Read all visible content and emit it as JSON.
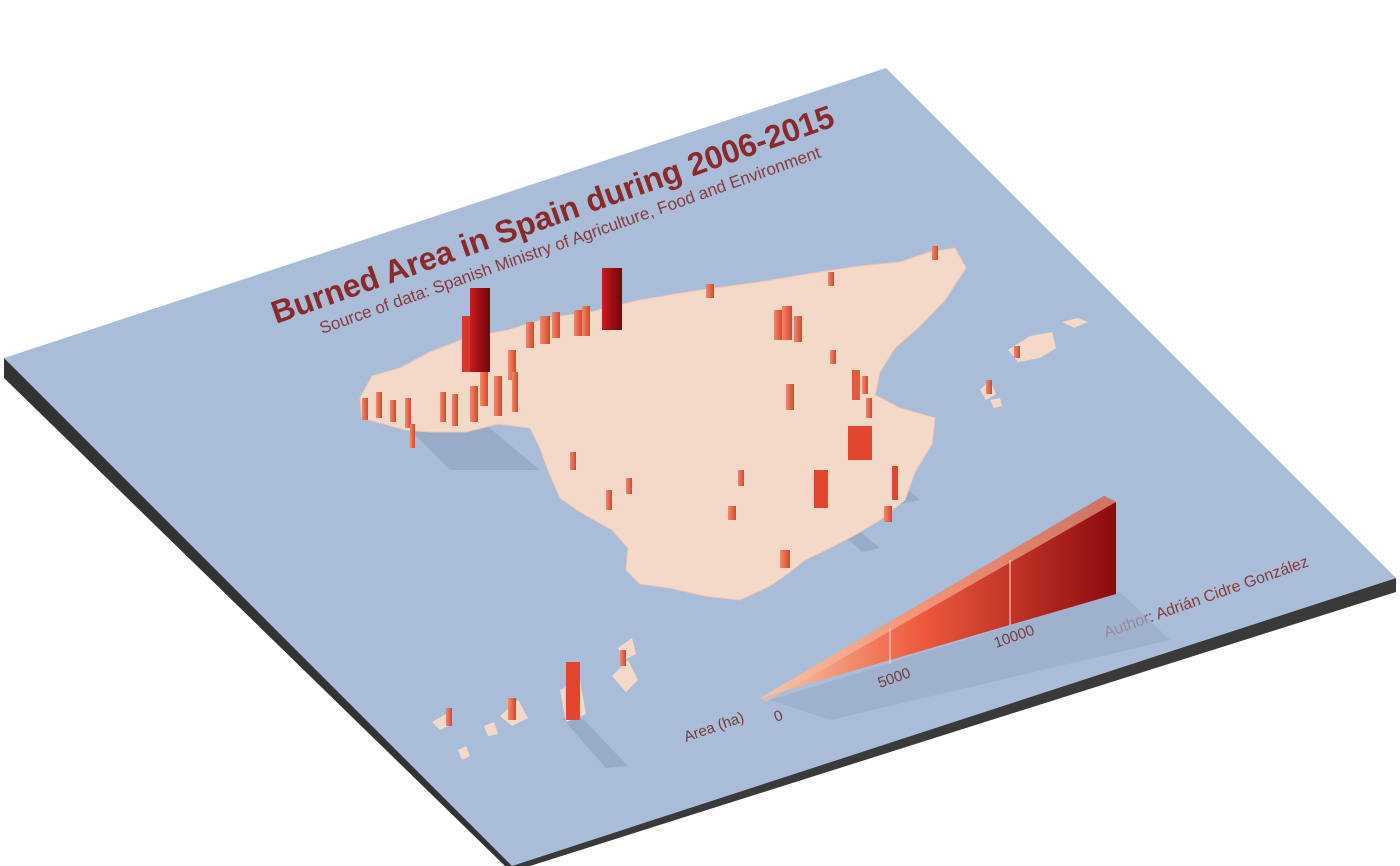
{
  "title": "Burned Area in Spain during 2006-2015",
  "subtitle": "Source of data: Spanish Ministry of Agriculture, Food and Environment",
  "author": "Author: Adrián Cidre González",
  "legend": {
    "label": "Area (ha)",
    "ticks": [
      "0",
      "5000",
      "10000"
    ],
    "max": 13500,
    "color_low": "#f6cdb0",
    "color_mid": "#ef5a3c",
    "color_high": "#8c0a0f"
  },
  "colors": {
    "water": "#a9bdd8",
    "land": "#f5d9c8",
    "plate_edge": "#3a3a3a"
  }
}
